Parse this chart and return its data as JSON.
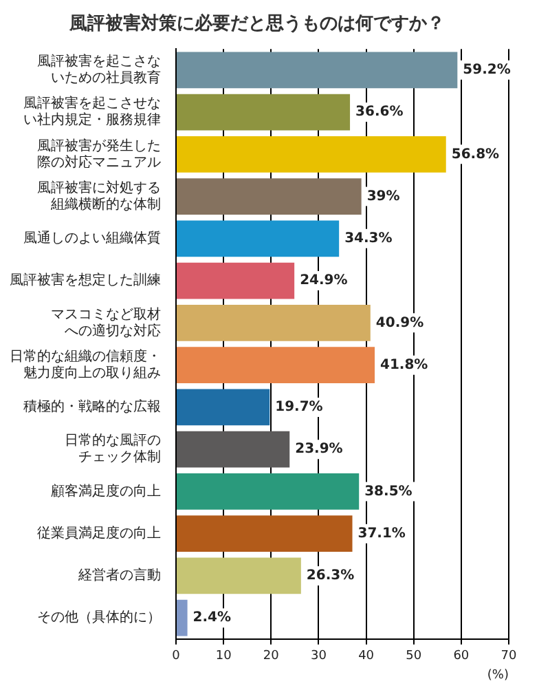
{
  "chart_data": {
    "type": "bar",
    "orientation": "horizontal",
    "title": "風評被害対策に必要だと思うものは何ですか？",
    "xlabel": "(%)",
    "categories": [
      "風評被害を起こさないための社員教育",
      "風評被害を起こさせない社内規定・服務規律",
      "風評被害が発生した際の対応マニュアル",
      "風評被害に対処する組織横断的な体制",
      "風通しのよい組織体質",
      "風評被害を想定した訓練",
      "マスコミなど取材への適切な対応",
      "日常的な組織の信頼度・魅力度向上の取り組み",
      "積極的・戦略的な広報",
      "日常的な風評のチェック体制",
      "顧客満足度の向上",
      "従業員満足度の向上",
      "経営者の言動",
      "その他（具体的に）"
    ],
    "values": [
      59.2,
      36.6,
      56.8,
      39,
      34.3,
      24.9,
      40.9,
      41.8,
      19.7,
      23.9,
      38.5,
      37.1,
      26.3,
      2.4
    ],
    "value_labels": [
      "59.2%",
      "36.6%",
      "56.8%",
      "39%",
      "34.3%",
      "24.9%",
      "40.9%",
      "41.8%",
      "19.7%",
      "23.9%",
      "38.5%",
      "37.1%",
      "26.3%",
      "2.4%"
    ],
    "colors": [
      "#6f91a0",
      "#8e9440",
      "#e8c000",
      "#85725f",
      "#1a95cf",
      "#d95b68",
      "#d3ad62",
      "#e8844a",
      "#1f6ea5",
      "#5c5a5a",
      "#2a9a7c",
      "#b25b1a",
      "#c6c574",
      "#8098c8"
    ],
    "xlim": [
      0,
      70
    ],
    "xticks": [
      0,
      10,
      20,
      30,
      40,
      50,
      60,
      70
    ],
    "grid": "x",
    "legend": false
  }
}
